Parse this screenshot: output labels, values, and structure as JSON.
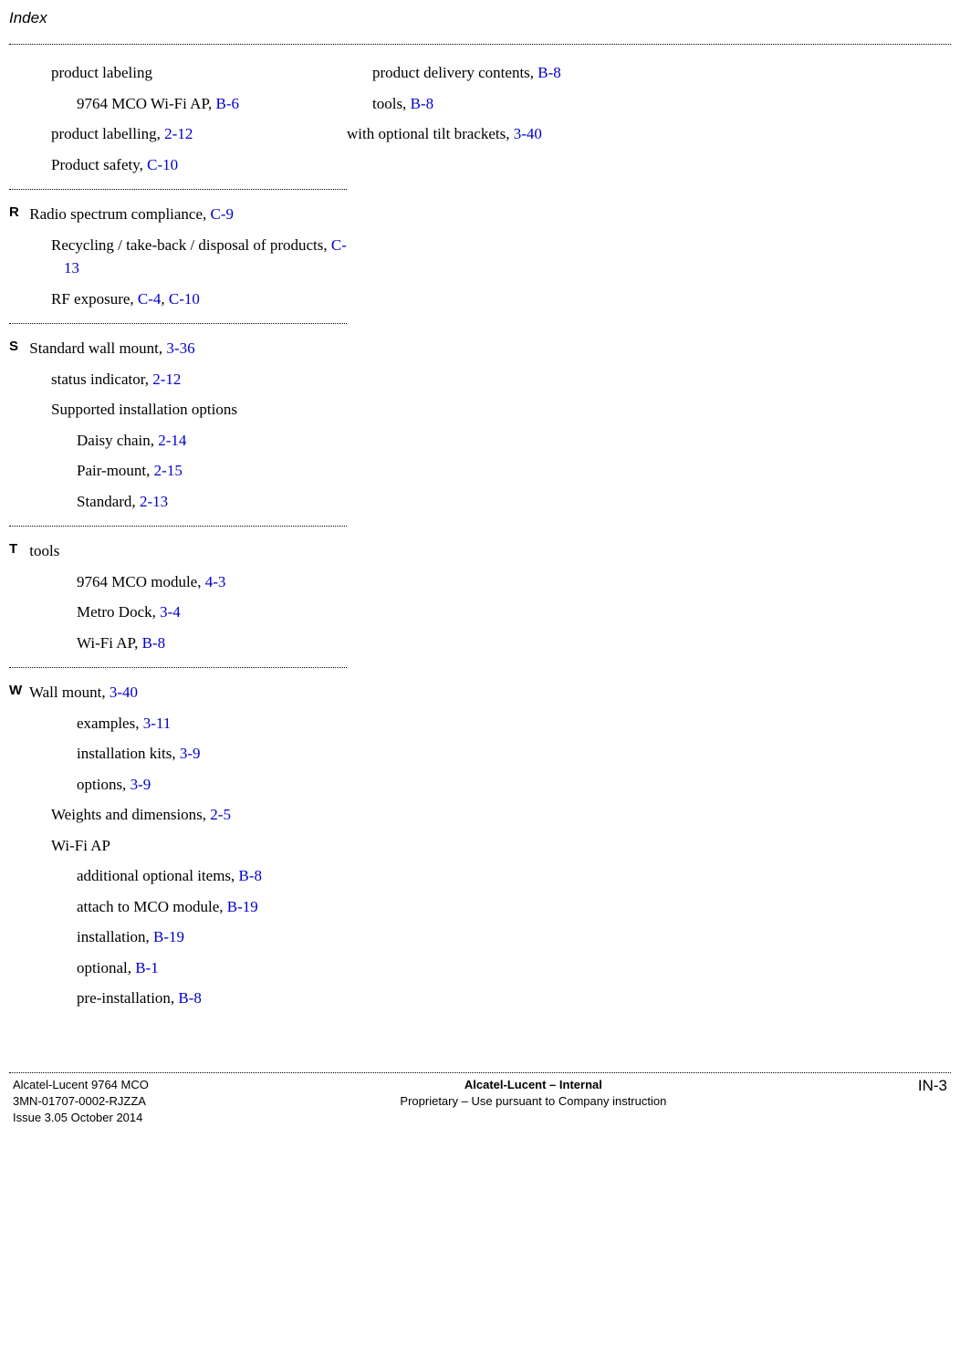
{
  "header": {
    "title": "Index"
  },
  "link_color": "#0000cc",
  "left_column": {
    "p_section": {
      "items": [
        {
          "text": "product labeling",
          "indent": 1
        },
        {
          "text": "9764 MCO Wi-Fi AP, ",
          "ref": "B-6",
          "indent": 2
        },
        {
          "text": "product labelling, ",
          "ref": "2-12",
          "indent": 1
        },
        {
          "text": "Product safety, ",
          "ref": "C-10",
          "indent": 1
        }
      ]
    },
    "r_section": {
      "letter": "R",
      "items": [
        {
          "text": "Radio spectrum compliance, ",
          "ref": "C-9",
          "indent": 0
        },
        {
          "text_pre": "Recycling / take-back / disposal of products, ",
          "ref": "C-13",
          "hang": true
        },
        {
          "text": "RF exposure, ",
          "ref": "C-4",
          "ref2": "C-10",
          "indent": 0
        }
      ]
    },
    "s_section": {
      "letter": "S",
      "items": [
        {
          "text": "Standard wall mount, ",
          "ref": "3-36",
          "indent": 0
        },
        {
          "text": "status indicator, ",
          "ref": "2-12",
          "indent": 0
        },
        {
          "text": "Supported installation options",
          "indent": 0
        },
        {
          "text": "Daisy chain, ",
          "ref": "2-14",
          "indent": 1
        },
        {
          "text": "Pair-mount, ",
          "ref": "2-15",
          "indent": 1
        },
        {
          "text": "Standard, ",
          "ref": "2-13",
          "indent": 1
        }
      ]
    },
    "t_section": {
      "letter": "T",
      "items": [
        {
          "text": "tools",
          "indent": 0
        },
        {
          "text": "9764 MCO module, ",
          "ref": "4-3",
          "indent": 1
        },
        {
          "text": "Metro Dock, ",
          "ref": "3-4",
          "indent": 1
        },
        {
          "text": "Wi-Fi AP, ",
          "ref": "B-8",
          "indent": 1
        }
      ]
    },
    "w_section": {
      "letter": "W",
      "items": [
        {
          "text": "Wall mount, ",
          "ref": "3-40",
          "indent": 0
        },
        {
          "text": "examples, ",
          "ref": "3-11",
          "indent": 1
        },
        {
          "text": "installation kits, ",
          "ref": "3-9",
          "indent": 1
        },
        {
          "text": "options, ",
          "ref": "3-9",
          "indent": 1
        },
        {
          "text": "Weights and dimensions, ",
          "ref": "2-5",
          "indent": 0
        },
        {
          "text": "Wi-Fi AP",
          "indent": 0
        },
        {
          "text": "additional optional items, ",
          "ref": "B-8",
          "indent": 1
        },
        {
          "text": "attach to MCO module, ",
          "ref": "B-19",
          "indent": 1
        },
        {
          "text": "installation, ",
          "ref": "B-19",
          "indent": 1
        },
        {
          "text": "optional, ",
          "ref": "B-1",
          "indent": 1
        },
        {
          "text": "pre-installation, ",
          "ref": "B-8",
          "indent": 1
        }
      ]
    }
  },
  "right_column": {
    "items": [
      {
        "text": "product delivery contents, ",
        "ref": "B-8",
        "indent": 1
      },
      {
        "text": "tools, ",
        "ref": "B-8",
        "indent": 1
      },
      {
        "text": "with optional tilt brackets, ",
        "ref": "3-40",
        "indent": 0
      }
    ]
  },
  "footer": {
    "left_line1": "Alcatel-Lucent 9764 MCO",
    "left_line2": "3MN-01707-0002-RJZZA",
    "left_line3": "Issue 3.05   October 2014",
    "center_line1": "Alcatel-Lucent – Internal",
    "center_line2": "Proprietary – Use pursuant to Company instruction",
    "page_number": "IN-3"
  }
}
